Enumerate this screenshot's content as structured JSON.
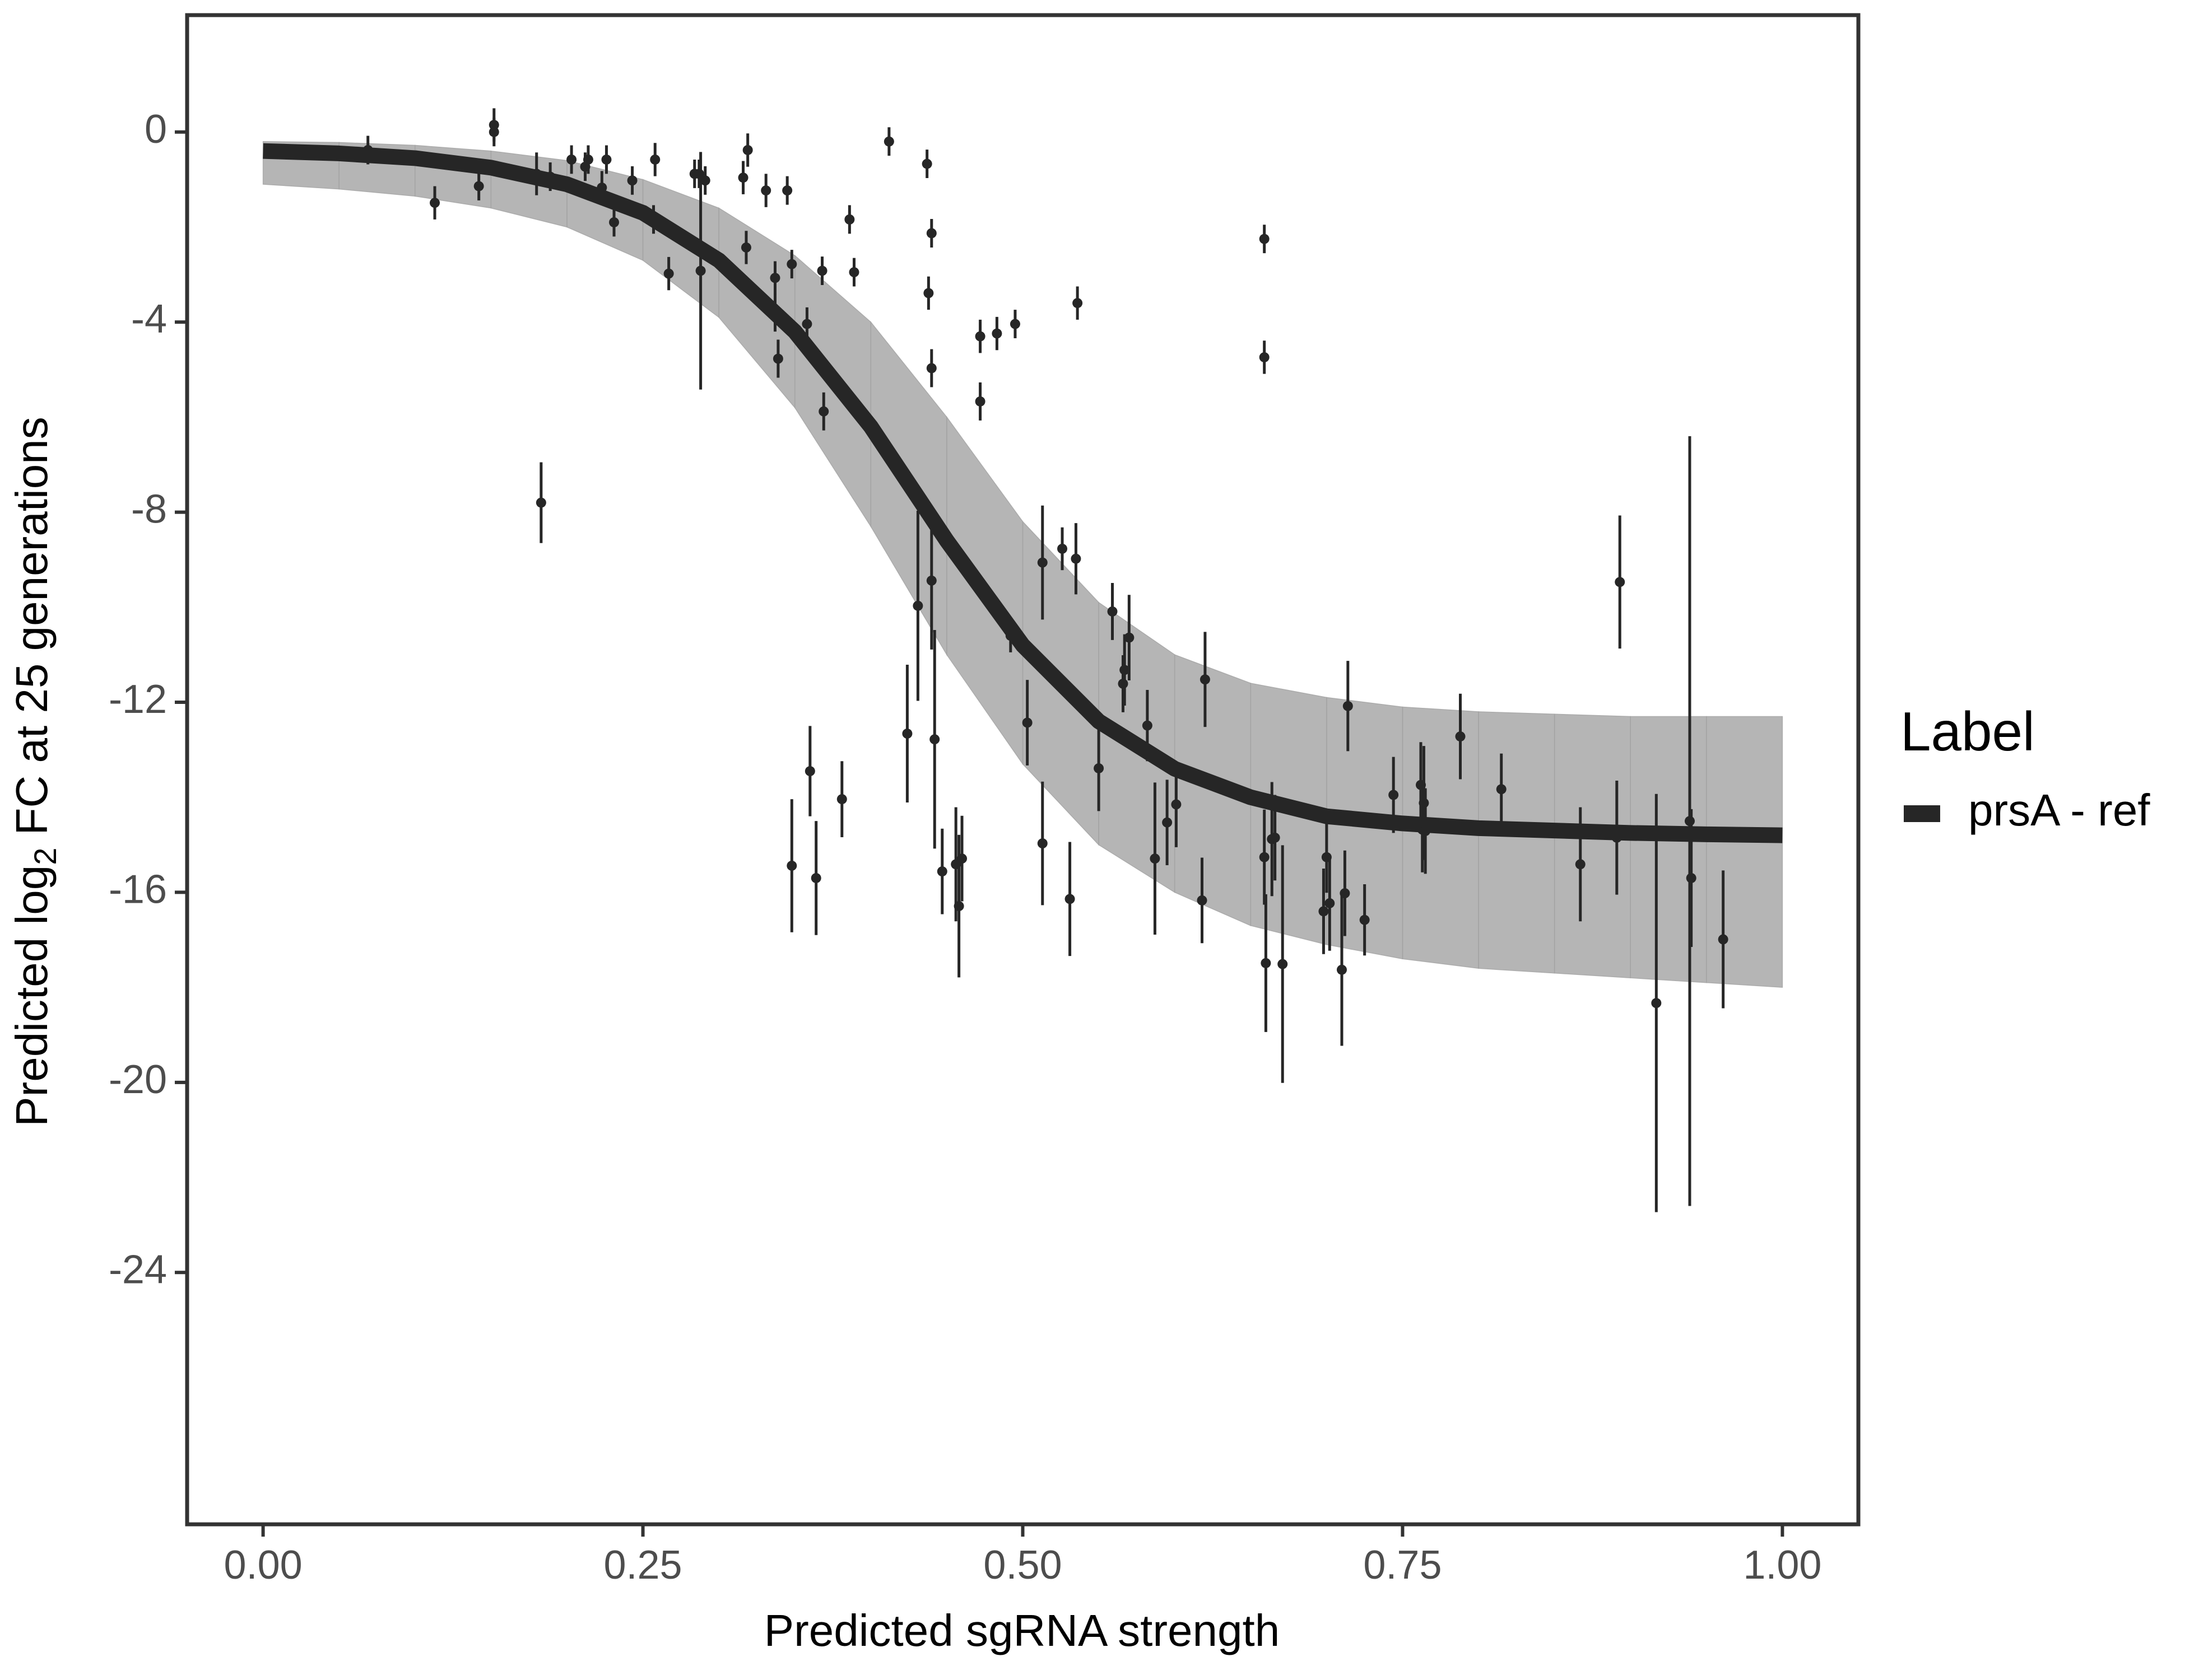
{
  "chart_data": {
    "type": "scatter",
    "x_label": "Predicted sgRNA strength",
    "y_label_parts": [
      "Predicted  log",
      "2",
      " FC at 25 generations"
    ],
    "legend_title": "Label",
    "xlim": [
      -0.05,
      1.05
    ],
    "ylim": [
      -29.3,
      2.46
    ],
    "xticks": [
      {
        "value": 0,
        "label": "0.00"
      },
      {
        "value": 0.25,
        "label": "0.25"
      },
      {
        "value": 0.5,
        "label": "0.50"
      },
      {
        "value": 0.75,
        "label": "0.75"
      },
      {
        "value": 1,
        "label": "1.00"
      }
    ],
    "yticks": [
      0,
      -4,
      -8,
      -12,
      -16,
      -20,
      -24
    ],
    "grid": false,
    "x": [
      0,
      0.05,
      0.1,
      0.15,
      0.2,
      0.25,
      0.3,
      0.35,
      0.4,
      0.45,
      0.5,
      0.55,
      0.6,
      0.65,
      0.7,
      0.75,
      0.8,
      0.85,
      0.9,
      0.95,
      1
    ],
    "series": [
      {
        "name": "prsA - ref",
        "color": "#262626",
        "values": [
          -0.4,
          -0.45,
          -0.55,
          -0.75,
          -1.1,
          -1.7,
          -2.7,
          -4.2,
          -6.2,
          -8.6,
          -10.8,
          -12.4,
          -13.4,
          -14.0,
          -14.4,
          -14.55,
          -14.65,
          -14.7,
          -14.75,
          -14.78,
          -14.8
        ]
      }
    ],
    "band": {
      "color": "#a3a3a3",
      "upper": [
        -0.2,
        -0.22,
        -0.28,
        -0.4,
        -0.6,
        -1.0,
        -1.6,
        -2.6,
        -4.0,
        -6.0,
        -8.2,
        -9.9,
        -11.0,
        -11.6,
        -11.9,
        -12.1,
        -12.2,
        -12.25,
        -12.3,
        -12.3,
        -12.3
      ],
      "lower": [
        -1.1,
        -1.2,
        -1.35,
        -1.6,
        -2.0,
        -2.7,
        -3.9,
        -5.8,
        -8.3,
        -11.0,
        -13.3,
        -15.0,
        -16.0,
        -16.7,
        -17.1,
        -17.4,
        -17.6,
        -17.7,
        -17.8,
        -17.9,
        -18.0
      ]
    },
    "points": {
      "color": "#262626",
      "x": [
        0.069,
        0.113,
        0.142,
        0.152,
        0.152,
        0.18,
        0.183,
        0.189,
        0.203,
        0.212,
        0.214,
        0.223,
        0.226,
        0.231,
        0.243,
        0.257,
        0.258,
        0.267,
        0.284,
        0.287,
        0.288,
        0.291,
        0.319,
        0.316,
        0.318,
        0.331,
        0.337,
        0.337,
        0.339,
        0.345,
        0.348,
        0.348,
        0.358,
        0.36,
        0.364,
        0.368,
        0.369,
        0.381,
        0.386,
        0.389,
        0.412,
        0.424,
        0.431,
        0.437,
        0.438,
        0.44,
        0.44,
        0.44,
        0.442,
        0.447,
        0.456,
        0.458,
        0.46,
        0.472,
        0.472,
        0.483,
        0.492,
        0.495,
        0.503,
        0.513,
        0.513,
        0.526,
        0.531,
        0.535,
        0.536,
        0.55,
        0.559,
        0.566,
        0.567,
        0.57,
        0.582,
        0.587,
        0.595,
        0.601,
        0.618,
        0.62,
        0.659,
        0.659,
        0.659,
        0.66,
        0.664,
        0.666,
        0.671,
        0.698,
        0.7,
        0.702,
        0.71,
        0.712,
        0.714,
        0.725,
        0.744,
        0.762,
        0.763,
        0.764,
        0.765,
        0.788,
        0.815,
        0.867,
        0.891,
        0.893,
        0.917,
        0.939,
        0.94,
        0.961
      ],
      "values": [
        -0.38,
        -1.49,
        -1.14,
        0.15,
        0.0,
        -0.88,
        -7.8,
        -0.94,
        -0.58,
        -0.73,
        -0.58,
        -1.17,
        -0.58,
        -1.9,
        -1.02,
        -1.84,
        -0.58,
        -2.98,
        -0.88,
        -0.88,
        -2.92,
        -1.02,
        -0.38,
        -0.96,
        -2.43,
        -1.23,
        -3.07,
        -3.8,
        -4.77,
        -1.23,
        -2.78,
        -15.44,
        -4.04,
        -13.45,
        -15.7,
        -2.92,
        -5.88,
        -14.04,
        -1.84,
        -2.95,
        -0.2,
        -12.66,
        -9.97,
        -0.67,
        -3.39,
        -2.13,
        -9.44,
        -4.97,
        -12.78,
        -15.56,
        -15.41,
        -16.29,
        -15.29,
        -4.3,
        -5.67,
        -4.24,
        -10.6,
        -4.04,
        -12.43,
        -9.06,
        -14.97,
        -8.77,
        -16.14,
        -8.98,
        -3.6,
        -13.39,
        -10.09,
        -11.61,
        -11.32,
        -10.64,
        -12.49,
        -15.29,
        -14.53,
        -14.15,
        -16.17,
        -11.52,
        -2.25,
        -4.74,
        -15.26,
        -17.49,
        -14.88,
        -14.85,
        -17.51,
        -16.4,
        -15.26,
        -16.23,
        -17.63,
        -16.02,
        -12.08,
        -16.58,
        -13.95,
        -13.74,
        -14.68,
        -14.12,
        -14.71,
        -12.72,
        -13.83,
        -15.41,
        -14.85,
        -9.47,
        -18.33,
        -14.5,
        -15.7,
        -16.99
      ],
      "errors": [
        0.3,
        0.35,
        0.3,
        0.35,
        0.3,
        0.45,
        0.85,
        0.3,
        0.3,
        0.3,
        0.3,
        0.35,
        0.3,
        0.3,
        0.3,
        0.3,
        0.35,
        0.35,
        0.3,
        0.3,
        2.5,
        0.3,
        0.35,
        0.35,
        0.35,
        0.35,
        0.35,
        0.4,
        0.4,
        0.3,
        0.3,
        1.4,
        0.35,
        0.95,
        1.2,
        0.3,
        0.4,
        0.8,
        0.3,
        0.3,
        0.3,
        1.45,
        2.0,
        0.3,
        0.35,
        0.3,
        1.45,
        0.4,
        2.3,
        0.9,
        1.2,
        1.5,
        0.9,
        0.35,
        0.4,
        0.35,
        0.35,
        0.3,
        0.9,
        1.2,
        1.3,
        0.45,
        1.2,
        0.75,
        0.35,
        0.9,
        0.6,
        0.6,
        0.75,
        0.9,
        0.75,
        1.6,
        0.9,
        0.9,
        0.9,
        1.0,
        0.3,
        0.35,
        1.0,
        1.45,
        1.2,
        0.9,
        2.5,
        0.9,
        0.75,
        1.0,
        1.6,
        0.9,
        0.95,
        0.75,
        0.8,
        0.9,
        0.9,
        1.2,
        0.9,
        0.9,
        0.75,
        1.2,
        1.2,
        1.4,
        4.4,
        8.1,
        1.45,
        1.45
      ]
    }
  }
}
